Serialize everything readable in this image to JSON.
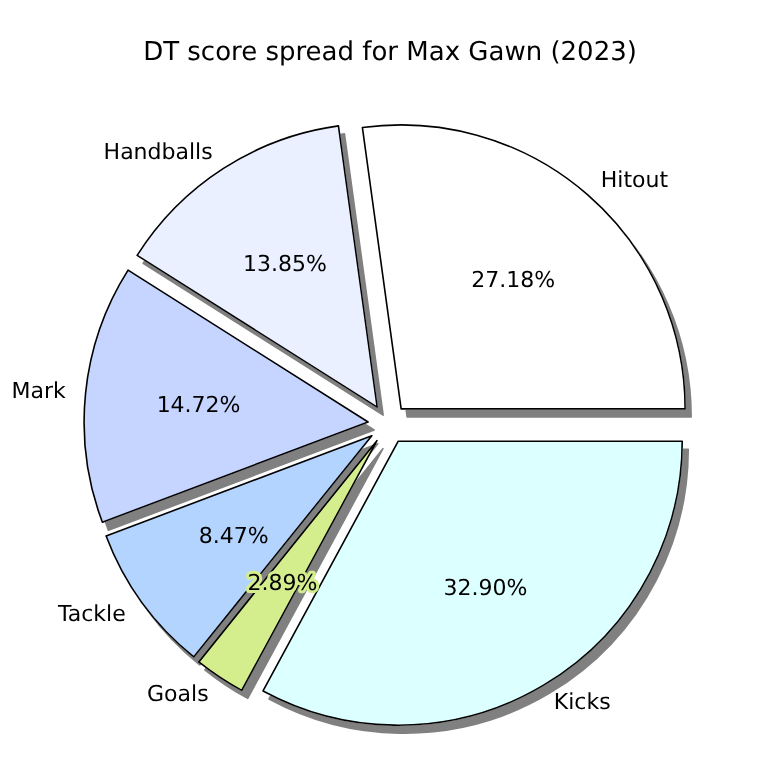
{
  "chart_data": {
    "type": "pie",
    "title": "DT score spread for Max Gawn (2023)",
    "categories": [
      "Hitout",
      "Handballs",
      "Mark",
      "Tackle",
      "Goals",
      "Kicks"
    ],
    "values": [
      27.18,
      13.85,
      14.72,
      8.47,
      2.89,
      32.9
    ],
    "value_labels": [
      "27.18%",
      "13.85%",
      "14.72%",
      "8.47%",
      "2.89%",
      "32.90%"
    ],
    "colors": [
      "#ffffff",
      "#eaf0ff",
      "#c6d5ff",
      "#b3d4ff",
      "#d4ee8e",
      "#dcffff"
    ]
  }
}
